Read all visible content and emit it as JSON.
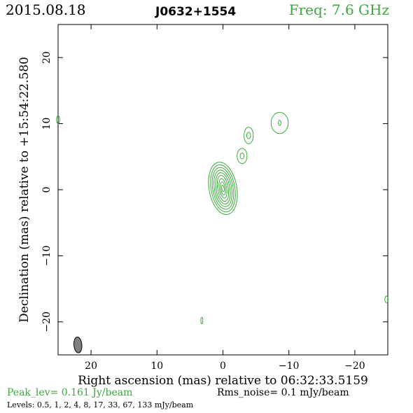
{
  "header": {
    "date": "2015.08.18",
    "source": "J0632+1554",
    "frequency": "Freq: 7.6 GHz"
  },
  "colors": {
    "contour": "#3aa83a",
    "beam": "#808080",
    "freq_text": "#3aa83a"
  },
  "chart_data": {
    "type": "contour",
    "xlabel": "Right ascension (mas) relative to 06:32:33.5159",
    "ylabel": "Declination (mas) relative to +15:54:22.580",
    "xlim": [
      25.0,
      -25.0
    ],
    "ylim": [
      -25.0,
      25.0
    ],
    "x_ticks": [
      20,
      10,
      0,
      -10,
      -20
    ],
    "y_ticks": [
      20,
      10,
      0,
      -10,
      -20
    ],
    "x_tick_labels": [
      "20",
      "10",
      "0",
      "−10",
      "−20"
    ],
    "y_tick_labels": [
      "20",
      "10",
      "0",
      "−10",
      "−20"
    ],
    "peak_level": "Peak_lev=  0.161 Jy/beam",
    "rms_noise": "Rms_noise=  0.1 mJy/beam",
    "levels_text": "Levels: 0.5,   1,   2,   4,   8,  17,  33,  67, 133 mJy/beam",
    "contour_levels_mJy": [
      0.5,
      1,
      2,
      4,
      8,
      17,
      33,
      67,
      133
    ],
    "core": {
      "x": 0.0,
      "y": 0.2,
      "rings_a": [
        2.1,
        1.8,
        1.55,
        1.3,
        1.05,
        0.8,
        0.55,
        0.35,
        0.18
      ],
      "rings_b": [
        4.0,
        3.6,
        3.2,
        2.8,
        2.4,
        2.0,
        1.5,
        1.0,
        0.5
      ],
      "angle_deg": -10
    },
    "components": [
      {
        "x": -2.9,
        "y": 5.1,
        "rings": [
          [
            0.75,
            1.15
          ],
          [
            0.3,
            0.45
          ]
        ]
      },
      {
        "x": -3.9,
        "y": 8.2,
        "rings": [
          [
            0.7,
            1.25
          ],
          [
            0.3,
            0.5
          ]
        ]
      },
      {
        "x": -8.6,
        "y": 10.1,
        "rings": [
          [
            1.3,
            1.6
          ],
          [
            0.2,
            0.4
          ]
        ]
      },
      {
        "x": 25.0,
        "y": 10.6,
        "rings": [
          [
            0.25,
            0.6
          ]
        ]
      },
      {
        "x": 3.2,
        "y": -19.8,
        "rings": [
          [
            0.15,
            0.5
          ]
        ]
      },
      {
        "x": -24.8,
        "y": -16.6,
        "rings": [
          [
            0.25,
            0.5
          ]
        ]
      }
    ],
    "beam": {
      "x": 22.0,
      "y": -23.5,
      "major_mas": 2.4,
      "minor_mas": 1.2,
      "pa_deg": -5
    }
  }
}
